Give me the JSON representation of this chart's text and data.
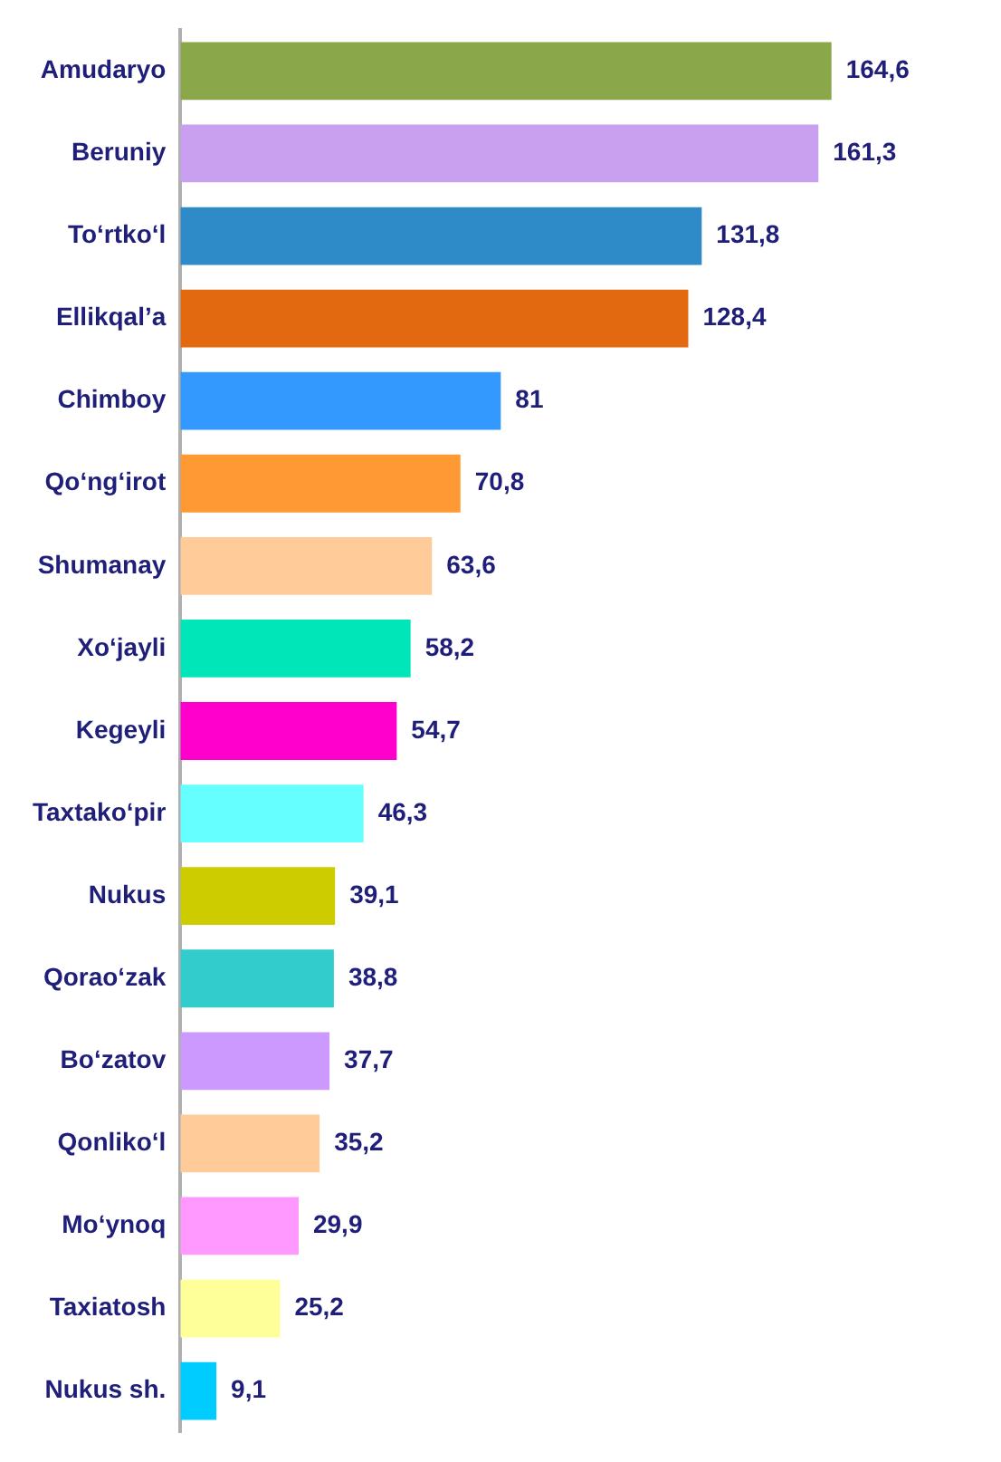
{
  "chart_data": {
    "type": "bar",
    "orientation": "horizontal",
    "tick_labels": "y",
    "grid": false,
    "legend": false,
    "categories": [
      "Amudaryo",
      "Beruniy",
      "To‘rtko‘l",
      "Ellikqal’a",
      "Chimboy",
      "Qo‘ng‘irot",
      "Shumanay",
      "Xo‘jayli",
      "Kegeyli",
      "Taxtako‘pir",
      "Nukus",
      "Qorao‘zak",
      "Bo‘zatov",
      "Qonliko‘l",
      "Mo‘ynoq",
      "Taxiatosh",
      "Nukus sh."
    ],
    "values": [
      164.6,
      161.3,
      131.8,
      128.4,
      81,
      70.8,
      63.6,
      58.2,
      54.7,
      46.3,
      39.1,
      38.8,
      37.7,
      35.2,
      29.9,
      25.2,
      9.1
    ],
    "value_labels": [
      "164,6",
      "161,3",
      "131,8",
      "128,4",
      "81",
      "70,8",
      "63,6",
      "58,2",
      "54,7",
      "46,3",
      "39,1",
      "38,8",
      "37,7",
      "35,2",
      "29,9",
      "25,2",
      "9,1"
    ],
    "colors": [
      "#8aa84a",
      "#c9a0f0",
      "#2e8bc8",
      "#e2690f",
      "#3399ff",
      "#ff9933",
      "#ffcc99",
      "#00e6b8",
      "#ff00cc",
      "#66ffff",
      "#cccc00",
      "#33cccc",
      "#cc99ff",
      "#ffcc99",
      "#ff99ff",
      "#ffff99",
      "#00ccff"
    ]
  }
}
